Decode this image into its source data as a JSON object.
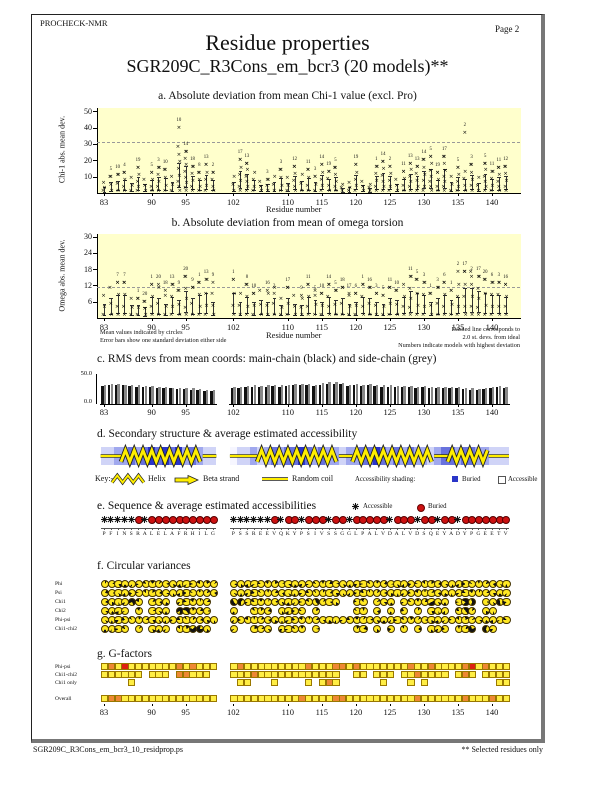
{
  "page": {
    "app": "PROCHECK-NMR",
    "page_label": "Page  2",
    "title": "Residue properties",
    "subtitle": "SGR209C_R3Cons_em_bcr3 (20 models)**",
    "footer_left": "SGR209C_R3Cons_em_bcr3_10_residprop.ps",
    "footer_right": "** Selected residues only"
  },
  "notes": {
    "mean1": "Mean values indicated by circles",
    "mean2": "Error bars show one standard deviation either side",
    "xlabel": "Residue number",
    "dash1": "Dashed line corresponds to",
    "dash2": "2.0 st. devs. from ideal",
    "dash3": "Numbers indicate models with highest deviation"
  },
  "colors": {
    "plot_bg": "#ffffcc",
    "dashed_line": "#999999",
    "marker": "#000000",
    "bar_main": "#111111",
    "bar_side": "#888888",
    "helix_yellow": "#ffee00",
    "ss_outline": "#222222",
    "buried_blue": "#2a35c8",
    "buried_red": "#cc1111",
    "cv_yellow": "#ffe822",
    "gf_yellow": "#ffee44",
    "gf_orange": "#ee8833",
    "gf_red": "#dd2211",
    "access_palette": [
      "#f6f6ff",
      "#d0d4f7",
      "#a0a8ee",
      "#6872dd",
      "#2a35c8"
    ]
  },
  "residue_ranges": [
    [
      83,
      99
    ],
    [
      102,
      142
    ]
  ],
  "chart_data": [
    {
      "type": "scatter",
      "panel": "a",
      "title": "a. Absolute deviation from mean Chi-1 value (excl. Pro)",
      "ylabel": "Chi-1 abs. mean dev.",
      "xlabel": "Residue number",
      "ylim": [
        0,
        50
      ],
      "yticks": [
        10,
        20,
        30,
        40,
        50
      ],
      "xticks": [
        83,
        90,
        95,
        102,
        110,
        115,
        120,
        125,
        130,
        135,
        140
      ],
      "dashed_line_y": 31,
      "tops": [
        6,
        10,
        11,
        12,
        9,
        15,
        8,
        12,
        15,
        14,
        10,
        28,
        25,
        16,
        12,
        17,
        12,
        10,
        20,
        18,
        12,
        7,
        8,
        10,
        14,
        9,
        16,
        11,
        14,
        10,
        17,
        13,
        15,
        5,
        6,
        17,
        7,
        5,
        16,
        19,
        16,
        8,
        13,
        18,
        16,
        20,
        22,
        12,
        22,
        10,
        15,
        13,
        17,
        9,
        18,
        13,
        15,
        16
      ],
      "outliers": [
        [
          84,
          10,
          "5"
        ],
        [
          85,
          11,
          "10"
        ],
        [
          86,
          12,
          "4"
        ],
        [
          88,
          15,
          "19"
        ],
        [
          90,
          12,
          "5"
        ],
        [
          91,
          15,
          "3"
        ],
        [
          92,
          14,
          "10"
        ],
        [
          94,
          40,
          "10"
        ],
        [
          95,
          25,
          "14"
        ],
        [
          96,
          16,
          "18"
        ],
        [
          97,
          12,
          "8"
        ],
        [
          98,
          17,
          "13"
        ],
        [
          99,
          12,
          "2"
        ],
        [
          103,
          20,
          "17"
        ],
        [
          104,
          18,
          "13"
        ],
        [
          107,
          8,
          "3"
        ],
        [
          109,
          14,
          "3"
        ],
        [
          111,
          16,
          "12"
        ],
        [
          113,
          14,
          "11"
        ],
        [
          114,
          10,
          "3"
        ],
        [
          115,
          17,
          "14"
        ],
        [
          116,
          13,
          "19"
        ],
        [
          117,
          15,
          "5"
        ],
        [
          120,
          17,
          "19"
        ],
        [
          123,
          16,
          "1"
        ],
        [
          124,
          19,
          "14"
        ],
        [
          125,
          16,
          "2"
        ],
        [
          127,
          13,
          "11"
        ],
        [
          128,
          18,
          "13"
        ],
        [
          129,
          16,
          "13"
        ],
        [
          130,
          20,
          "14"
        ],
        [
          131,
          22,
          "5"
        ],
        [
          132,
          12,
          "19"
        ],
        [
          133,
          22,
          "17"
        ],
        [
          135,
          15,
          "5"
        ],
        [
          136,
          37,
          "2"
        ],
        [
          137,
          17,
          "3"
        ],
        [
          139,
          18,
          "5"
        ],
        [
          140,
          13,
          "11"
        ],
        [
          141,
          15,
          "11"
        ],
        [
          142,
          16,
          "12"
        ]
      ]
    },
    {
      "type": "scatter",
      "panel": "b",
      "title": "b. Absolute deviation from mean of omega torsion",
      "ylabel": "Omega abs. mean dev.",
      "xlabel": "Residue number",
      "ylim": [
        0,
        30
      ],
      "yticks": [
        6,
        12,
        18,
        24,
        30
      ],
      "xticks": [
        83,
        90,
        95,
        102,
        110,
        115,
        120,
        125,
        130,
        135,
        140
      ],
      "dashed_line_y": 11.5,
      "tops": [
        8,
        11,
        13,
        13,
        7,
        7,
        6,
        12,
        11,
        8,
        12,
        10,
        15,
        11,
        13,
        14,
        9,
        14,
        9,
        12,
        9,
        10,
        9,
        11,
        7,
        11,
        8,
        7,
        12,
        10,
        9,
        12,
        10,
        11,
        8,
        9,
        12,
        11,
        9,
        8,
        11,
        10,
        12,
        15,
        14,
        13,
        9,
        11,
        13,
        10,
        12,
        17,
        17,
        15,
        14,
        13,
        13,
        12
      ],
      "outliers": [
        [
          85,
          13,
          "7"
        ],
        [
          86,
          13,
          "7"
        ],
        [
          88,
          7,
          "1"
        ],
        [
          89,
          6,
          "20"
        ],
        [
          90,
          12,
          "1"
        ],
        [
          91,
          12,
          "20"
        ],
        [
          92,
          10,
          "18"
        ],
        [
          93,
          12,
          "13"
        ],
        [
          94,
          10,
          "9"
        ],
        [
          95,
          15,
          "20"
        ],
        [
          96,
          11,
          "9"
        ],
        [
          97,
          13,
          "1"
        ],
        [
          98,
          14,
          "13"
        ],
        [
          99,
          13,
          "9"
        ],
        [
          102,
          14,
          "1"
        ],
        [
          104,
          12,
          "8"
        ],
        [
          105,
          9,
          "10"
        ],
        [
          107,
          10,
          "16"
        ],
        [
          108,
          9,
          "2"
        ],
        [
          110,
          11,
          "17"
        ],
        [
          112,
          8,
          "9"
        ],
        [
          113,
          12,
          "11"
        ],
        [
          114,
          8,
          "5"
        ],
        [
          115,
          9,
          "10"
        ],
        [
          116,
          12,
          "14"
        ],
        [
          117,
          10,
          "5"
        ],
        [
          118,
          11,
          "18"
        ],
        [
          119,
          9,
          "17"
        ],
        [
          120,
          9,
          "6"
        ],
        [
          121,
          12,
          "1"
        ],
        [
          122,
          11,
          "16"
        ],
        [
          123,
          9,
          "3"
        ],
        [
          124,
          8,
          "5"
        ],
        [
          125,
          11,
          "11"
        ],
        [
          126,
          10,
          "10"
        ],
        [
          128,
          15,
          "11"
        ],
        [
          129,
          14,
          "5"
        ],
        [
          130,
          13,
          "3"
        ],
        [
          131,
          9,
          "1"
        ],
        [
          132,
          11,
          "3"
        ],
        [
          133,
          13,
          "6"
        ],
        [
          134,
          10,
          "1"
        ],
        [
          135,
          17,
          "2"
        ],
        [
          136,
          17,
          "17"
        ],
        [
          137,
          15,
          "2"
        ],
        [
          138,
          15,
          "17"
        ],
        [
          139,
          14,
          "20"
        ],
        [
          140,
          13,
          "6"
        ],
        [
          141,
          13,
          "3"
        ],
        [
          142,
          12,
          "16"
        ]
      ]
    },
    {
      "type": "bar",
      "panel": "c",
      "title": "c. RMS devs from mean coords: main-chain (black) and side-chain (grey)",
      "ylim": [
        0,
        50
      ],
      "yticks_labels": [
        "0.0",
        "50.0"
      ],
      "xticks": [
        83,
        90,
        95,
        102,
        110,
        115,
        120,
        125,
        130,
        135,
        140
      ],
      "main": [
        30,
        31,
        32,
        31,
        30,
        29,
        29,
        28,
        27,
        26,
        26,
        25,
        25,
        24,
        23,
        22,
        21,
        26,
        27,
        28,
        29,
        28,
        29,
        30,
        29,
        30,
        31,
        32,
        31,
        30,
        32,
        33,
        34,
        33,
        30,
        31,
        30,
        31,
        30,
        29,
        29,
        28,
        28,
        28,
        27,
        28,
        27,
        26,
        27,
        26,
        26,
        25,
        24,
        23,
        25,
        27,
        28,
        27
      ],
      "side": [
        32,
        33,
        33,
        32,
        32,
        31,
        30,
        30,
        29,
        28,
        27,
        27,
        26,
        26,
        25,
        24,
        23,
        28,
        29,
        30,
        31,
        30,
        31,
        32,
        31,
        32,
        33,
        34,
        33,
        32,
        35,
        36,
        37,
        35,
        32,
        33,
        32,
        33,
        32,
        31,
        31,
        30,
        30,
        30,
        29,
        30,
        29,
        28,
        29,
        28,
        28,
        27,
        26,
        25,
        27,
        29,
        30,
        29
      ]
    },
    {
      "type": "ss-track",
      "panel": "d",
      "title": "d. Secondary structure & average estimated accessibility",
      "key": {
        "key_label": "Key:-",
        "helix": "Helix",
        "beta": "Beta strand",
        "coil": "Random coil",
        "shading": "Accessibility shading:",
        "buried": "Buried",
        "accessible": "Accessible"
      },
      "access_levels": [
        1,
        1,
        2,
        2,
        3,
        2,
        3,
        4,
        3,
        4,
        3,
        4,
        2,
        3,
        2,
        1,
        1,
        0,
        1,
        1,
        2,
        1,
        2,
        3,
        2,
        3,
        3,
        4,
        3,
        2,
        3,
        2,
        2,
        1,
        2,
        2,
        3,
        3,
        4,
        3,
        2,
        3,
        2,
        3,
        2,
        2,
        1,
        2,
        3,
        3,
        2,
        3,
        3,
        2,
        2,
        1,
        1,
        1
      ],
      "ss": [
        {
          "type": "coil",
          "from": 83,
          "to": 85
        },
        {
          "type": "helix",
          "from": 86,
          "to": 97
        },
        {
          "type": "coil",
          "from": 98,
          "to": 99
        },
        {
          "type": "coil",
          "from": 102,
          "to": 105
        },
        {
          "type": "helix",
          "from": 106,
          "to": 117
        },
        {
          "type": "coil",
          "from": 118,
          "to": 119
        },
        {
          "type": "helix",
          "from": 120,
          "to": 131
        },
        {
          "type": "coil",
          "from": 132,
          "to": 133
        },
        {
          "type": "helix",
          "from": 134,
          "to": 139
        },
        {
          "type": "coil",
          "from": 140,
          "to": 142
        }
      ]
    },
    {
      "type": "sequence",
      "panel": "e",
      "title": "e. Sequence & average estimated accessibilities",
      "legend": {
        "accessible": "Accessible",
        "buried": "Buried"
      },
      "seq1": "PFINSRALELAFRHILG",
      "seq2": "PSSREEVQKYPSIVSSGGLPALVDALVDSQEYADYPGEETV",
      "burial1": "aaaaababbbbbbbbbb",
      "burial2": "aaaaaababbabbbabbabbbbbabbbabbabbabbbbbbb"
    },
    {
      "type": "circular-variance",
      "panel": "f",
      "title": "f. Circular variances",
      "rows": [
        "Phi",
        "Psi",
        "Chi1",
        "Chi2",
        "Phi-psi",
        "Chi1-chi2"
      ],
      "dark_cells": [
        [
          "Chi1",
          87,
          0.75
        ],
        [
          "Chi1",
          102,
          0.55
        ],
        [
          "Chi1",
          103,
          0.6
        ],
        [
          "Chi1",
          114,
          0.45
        ],
        [
          "Chi1",
          131,
          0.5
        ],
        [
          "Chi1",
          136,
          0.8
        ],
        [
          "Chi1",
          137,
          0.6
        ],
        [
          "Chi1",
          141,
          0.5
        ],
        [
          "Chi2",
          94,
          0.85
        ],
        [
          "Chi2",
          95,
          0.6
        ],
        [
          "Chi2",
          136,
          0.5
        ],
        [
          "Chi1-chi2",
          96,
          0.7
        ],
        [
          "Chi1-chi2",
          97,
          0.8
        ],
        [
          "Chi1-chi2",
          137,
          0.75
        ],
        [
          "Chi1-chi2",
          139,
          0.6
        ]
      ]
    },
    {
      "type": "g-factors",
      "panel": "g",
      "title": "g. G-factors",
      "rows": [
        "Phi-psi",
        "Chi1-chi2",
        "Chi1 only",
        "Overall"
      ],
      "xticks": [
        83,
        90,
        95,
        102,
        110,
        115,
        120,
        125,
        130,
        135,
        140
      ],
      "overrides": {
        "phi_psi": [
          [
            84,
            "o"
          ],
          [
            86,
            "r"
          ],
          [
            94,
            "o"
          ],
          [
            96,
            "o"
          ],
          [
            103,
            "o"
          ],
          [
            113,
            "o"
          ],
          [
            117,
            "o"
          ],
          [
            118,
            "o"
          ],
          [
            120,
            "o"
          ],
          [
            128,
            "o"
          ],
          [
            131,
            "o"
          ],
          [
            136,
            "o"
          ],
          [
            137,
            "r"
          ],
          [
            139,
            "o"
          ]
        ],
        "chi1_chi2": [
          [
            94,
            "o"
          ],
          [
            95,
            "o"
          ],
          [
            105,
            "o"
          ],
          [
            129,
            "o"
          ],
          [
            136,
            "o"
          ]
        ],
        "chi1_only": [
          [
            116,
            "o"
          ]
        ],
        "overall": [
          [
            84,
            "o"
          ],
          [
            85,
            "o"
          ],
          [
            112,
            "o"
          ],
          [
            117,
            "o"
          ],
          [
            118,
            "o"
          ],
          [
            129,
            "o"
          ],
          [
            136,
            "o"
          ],
          [
            140,
            "o"
          ]
        ]
      }
    }
  ]
}
